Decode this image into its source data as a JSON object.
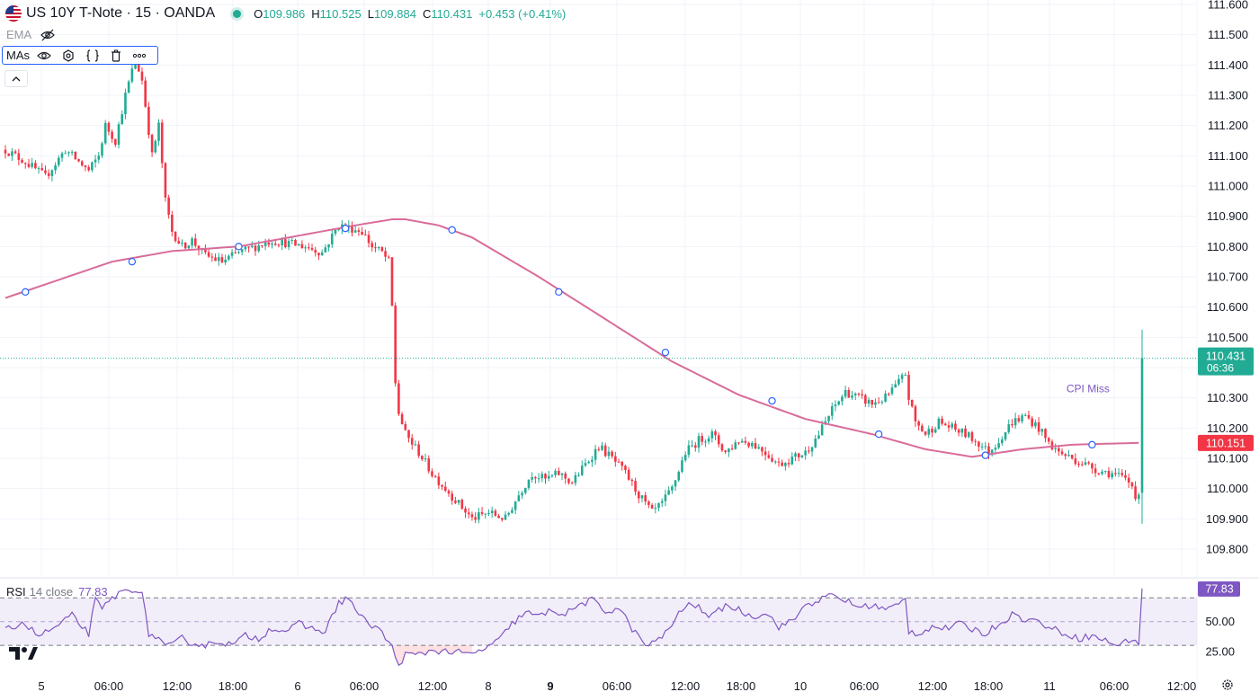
{
  "header": {
    "symbol": "US 10Y T-Note · 15 · OANDA",
    "open_label": "O",
    "open": "109.986",
    "high_label": "H",
    "high": "110.525",
    "low_label": "L",
    "low": "109.884",
    "close_label": "C",
    "close": "110.431",
    "change": "+0.453 (+0.41%)",
    "status_color": "#22ab94"
  },
  "indicators": {
    "ema_label": "EMA",
    "mas_label": "MAs",
    "mas_toolbar_icons": [
      "eye-icon",
      "settings-icon",
      "code-icon",
      "trash-icon",
      "more-icon"
    ]
  },
  "rsi_legend": {
    "name": "RSI",
    "params": "14 close",
    "value": "77.83"
  },
  "chart_data": [
    {
      "type": "candlestick",
      "symbol": "US 10Y T-Note",
      "interval": "15",
      "price_axis": {
        "ticks": [
          "111.600",
          "111.500",
          "111.400",
          "111.300",
          "111.200",
          "111.100",
          "111.000",
          "110.900",
          "110.800",
          "110.700",
          "110.600",
          "110.500",
          "110.400",
          "110.300",
          "110.200",
          "110.100",
          "110.000",
          "109.900",
          "109.800"
        ],
        "range": [
          109.75,
          111.62
        ]
      },
      "time_axis": {
        "ticks": [
          "5",
          "06:00",
          "12:00",
          "18:00",
          "6",
          "06:00",
          "12:00",
          "8",
          "9",
          "06:00",
          "12:00",
          "18:00",
          "10",
          "06:00",
          "12:00",
          "18:00",
          "11",
          "06:00",
          "12:00"
        ],
        "bold_tick": "9",
        "bars_total": 342
      },
      "price_path": [
        [
          0,
          111.12
        ],
        [
          6,
          111.08
        ],
        [
          12,
          111.03
        ],
        [
          18,
          111.12
        ],
        [
          25,
          111.05
        ],
        [
          28,
          111.1
        ],
        [
          30,
          111.2
        ],
        [
          33,
          111.15
        ],
        [
          36,
          111.3
        ],
        [
          39,
          111.42
        ],
        [
          41,
          111.35
        ],
        [
          44,
          111.1
        ],
        [
          46,
          111.2
        ],
        [
          48,
          110.95
        ],
        [
          50,
          110.85
        ],
        [
          53,
          110.8
        ],
        [
          56,
          110.82
        ],
        [
          60,
          110.77
        ],
        [
          65,
          110.75
        ],
        [
          70,
          110.78
        ],
        [
          75,
          110.8
        ],
        [
          80,
          110.82
        ],
        [
          85,
          110.81
        ],
        [
          90,
          110.8
        ],
        [
          95,
          110.78
        ],
        [
          100,
          110.87
        ],
        [
          104,
          110.86
        ],
        [
          107,
          110.85
        ],
        [
          110,
          110.8
        ],
        [
          113,
          110.78
        ],
        [
          115,
          110.75
        ],
        [
          116,
          110.6
        ],
        [
          117,
          110.35
        ],
        [
          118,
          110.25
        ],
        [
          120,
          110.18
        ],
        [
          124,
          110.12
        ],
        [
          128,
          110.05
        ],
        [
          132,
          110.0
        ],
        [
          136,
          109.95
        ],
        [
          140,
          109.9
        ],
        [
          145,
          109.92
        ],
        [
          150,
          109.9
        ],
        [
          154,
          109.98
        ],
        [
          158,
          110.05
        ],
        [
          162,
          110.03
        ],
        [
          166,
          110.05
        ],
        [
          170,
          110.02
        ],
        [
          174,
          110.08
        ],
        [
          178,
          110.14
        ],
        [
          182,
          110.1
        ],
        [
          186,
          110.05
        ],
        [
          190,
          109.98
        ],
        [
          194,
          109.92
        ],
        [
          197,
          109.95
        ],
        [
          200,
          110.0
        ],
        [
          204,
          110.12
        ],
        [
          208,
          110.16
        ],
        [
          212,
          110.18
        ],
        [
          216,
          110.12
        ],
        [
          220,
          110.16
        ],
        [
          224,
          110.15
        ],
        [
          228,
          110.12
        ],
        [
          232,
          110.08
        ],
        [
          236,
          110.1
        ],
        [
          240,
          110.12
        ],
        [
          244,
          110.18
        ],
        [
          248,
          110.26
        ],
        [
          252,
          110.32
        ],
        [
          256,
          110.3
        ],
        [
          260,
          110.28
        ],
        [
          264,
          110.3
        ],
        [
          268,
          110.35
        ],
        [
          270,
          110.38
        ],
        [
          271,
          110.3
        ],
        [
          273,
          110.22
        ],
        [
          276,
          110.18
        ],
        [
          280,
          110.22
        ],
        [
          284,
          110.2
        ],
        [
          288,
          110.18
        ],
        [
          292,
          110.15
        ],
        [
          295,
          110.12
        ],
        [
          298,
          110.16
        ],
        [
          302,
          110.22
        ],
        [
          306,
          110.24
        ],
        [
          310,
          110.2
        ],
        [
          313,
          110.15
        ],
        [
          316,
          110.12
        ],
        [
          320,
          110.1
        ],
        [
          324,
          110.08
        ],
        [
          328,
          110.06
        ],
        [
          332,
          110.05
        ],
        [
          336,
          110.03
        ],
        [
          338,
          110.01
        ],
        [
          339,
          109.98
        ],
        [
          340,
          109.986
        ],
        [
          341,
          110.431
        ]
      ],
      "ma": {
        "name": "MAs",
        "color": "#d96c9a",
        "points": [
          [
            0,
            110.63
          ],
          [
            32,
            110.75
          ],
          [
            50,
            110.785
          ],
          [
            70,
            110.8
          ],
          [
            90,
            110.84
          ],
          [
            105,
            110.87
          ],
          [
            116,
            110.89
          ],
          [
            120,
            110.89
          ],
          [
            130,
            110.87
          ],
          [
            140,
            110.83
          ],
          [
            160,
            110.7
          ],
          [
            180,
            110.56
          ],
          [
            200,
            110.42
          ],
          [
            220,
            110.31
          ],
          [
            240,
            110.23
          ],
          [
            260,
            110.18
          ],
          [
            276,
            110.13
          ],
          [
            290,
            110.105
          ],
          [
            305,
            110.13
          ],
          [
            320,
            110.145
          ],
          [
            340,
            110.151
          ]
        ],
        "markers": [
          [
            6,
            110.65
          ],
          [
            38,
            110.75
          ],
          [
            70,
            110.8
          ],
          [
            102,
            110.86
          ],
          [
            134,
            110.855
          ],
          [
            166,
            110.65
          ],
          [
            198,
            110.45
          ],
          [
            230,
            110.29
          ],
          [
            262,
            110.18
          ],
          [
            294,
            110.11
          ],
          [
            326,
            110.145
          ]
        ]
      },
      "last_price": {
        "value": "110.431",
        "countdown": "06:36",
        "color": "#22ab94"
      },
      "ma_value": {
        "value": "110.151",
        "color": "#f23645"
      },
      "annotations": [
        {
          "text": "CPI Miss",
          "x_bar": 321,
          "y": 110.33,
          "color": "#7e57c2"
        }
      ],
      "colors": {
        "up": "#22ab94",
        "down": "#f23645",
        "wick_up": "#22ab94",
        "wick_down": "#f23645",
        "grid": "#f0f3fa"
      }
    },
    {
      "type": "line",
      "name": "RSI",
      "params": "14 close",
      "value": "77.83",
      "color": "#7e57c2",
      "y_axis": {
        "ticks": [
          "50.00",
          "25.00"
        ],
        "range": [
          12,
          83
        ]
      },
      "bands": {
        "upper": 70,
        "middle": 50,
        "lower": 30
      },
      "path": [
        [
          0,
          42
        ],
        [
          5,
          50
        ],
        [
          10,
          38
        ],
        [
          15,
          45
        ],
        [
          20,
          55
        ],
        [
          25,
          40
        ],
        [
          27,
          68
        ],
        [
          29,
          60
        ],
        [
          32,
          70
        ],
        [
          36,
          76
        ],
        [
          39,
          78
        ],
        [
          41,
          72
        ],
        [
          43,
          40
        ],
        [
          46,
          36
        ],
        [
          48,
          28
        ],
        [
          50,
          30
        ],
        [
          53,
          36
        ],
        [
          56,
          32
        ],
        [
          60,
          30
        ],
        [
          64,
          34
        ],
        [
          68,
          30
        ],
        [
          72,
          38
        ],
        [
          76,
          36
        ],
        [
          80,
          45
        ],
        [
          84,
          42
        ],
        [
          88,
          48
        ],
        [
          92,
          44
        ],
        [
          96,
          42
        ],
        [
          100,
          66
        ],
        [
          103,
          70
        ],
        [
          106,
          56
        ],
        [
          108,
          50
        ],
        [
          112,
          44
        ],
        [
          116,
          28
        ],
        [
          118,
          14
        ],
        [
          120,
          22
        ],
        [
          124,
          22
        ],
        [
          128,
          26
        ],
        [
          132,
          25
        ],
        [
          136,
          24
        ],
        [
          140,
          22
        ],
        [
          144,
          28
        ],
        [
          148,
          34
        ],
        [
          152,
          48
        ],
        [
          156,
          58
        ],
        [
          160,
          54
        ],
        [
          164,
          60
        ],
        [
          168,
          56
        ],
        [
          172,
          64
        ],
        [
          176,
          68
        ],
        [
          180,
          58
        ],
        [
          184,
          62
        ],
        [
          188,
          44
        ],
        [
          192,
          30
        ],
        [
          196,
          34
        ],
        [
          200,
          48
        ],
        [
          204,
          64
        ],
        [
          208,
          62
        ],
        [
          212,
          54
        ],
        [
          216,
          64
        ],
        [
          220,
          60
        ],
        [
          224,
          54
        ],
        [
          228,
          58
        ],
        [
          232,
          46
        ],
        [
          236,
          50
        ],
        [
          240,
          64
        ],
        [
          244,
          68
        ],
        [
          248,
          72
        ],
        [
          252,
          68
        ],
        [
          256,
          62
        ],
        [
          260,
          64
        ],
        [
          264,
          60
        ],
        [
          268,
          64
        ],
        [
          270,
          70
        ],
        [
          271,
          42
        ],
        [
          274,
          40
        ],
        [
          278,
          46
        ],
        [
          282,
          44
        ],
        [
          286,
          48
        ],
        [
          290,
          44
        ],
        [
          294,
          40
        ],
        [
          298,
          48
        ],
        [
          302,
          56
        ],
        [
          306,
          52
        ],
        [
          310,
          50
        ],
        [
          314,
          44
        ],
        [
          318,
          40
        ],
        [
          322,
          36
        ],
        [
          326,
          38
        ],
        [
          330,
          34
        ],
        [
          334,
          30
        ],
        [
          338,
          36
        ],
        [
          340,
          32
        ],
        [
          341,
          77.83
        ]
      ]
    }
  ]
}
